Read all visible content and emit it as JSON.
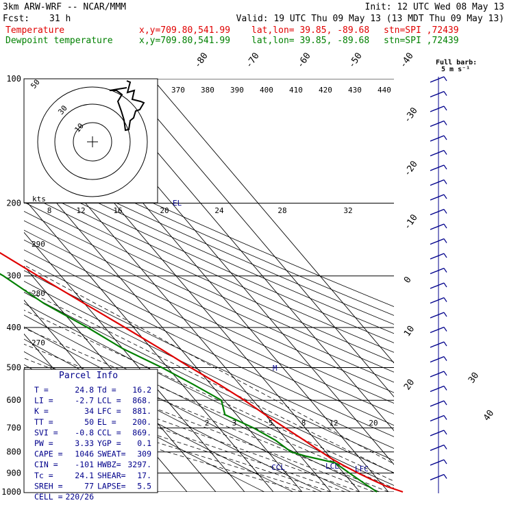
{
  "header": {
    "line1_left": "3km ARW-WRF -- NCAR/MMM",
    "line1_right": "Init: 12 UTC Wed 08 May 13",
    "fcst_label": "Fcst:",
    "fcst_value": "31 h",
    "valid": "Valid: 19 UTC Thu 09 May 13 (13 MDT Thu 09 May 13)",
    "temp_label": "Temperature",
    "dew_label": "Dewpoint temperature",
    "xy": "x,y=709.80,541.99",
    "latlon": "lat,lon= 39.85, -89.68",
    "stn": "stn=SPI ,72439"
  },
  "colors": {
    "temperature": "#e00000",
    "dewpoint": "#008000",
    "parcel_info": "#00008b"
  },
  "barb_legend": {
    "line1": "Full barb:",
    "line2": "5 m s⁻¹"
  },
  "hodograph": {
    "unit_label": "kts",
    "ring_labels": [
      "50",
      "30",
      "10"
    ]
  },
  "chart_data": {
    "type": "skew-T",
    "ylabel": "Pressure (hPa)",
    "pressure_levels": [
      100,
      200,
      300,
      400,
      500,
      600,
      700,
      800,
      900,
      1000
    ],
    "temp_axis_labels_top": [
      -80,
      -70,
      -60,
      -50,
      -40
    ],
    "temp_axis_labels_side": [
      -30,
      -20,
      -10,
      0,
      10,
      20,
      30,
      40
    ],
    "theta_labels_top": [
      370,
      380,
      390,
      400,
      410,
      420,
      430,
      440
    ],
    "theta_labels_left": [
      290,
      280,
      270
    ],
    "mixing_ratio_labels_mid": [
      8,
      12,
      16,
      20,
      24,
      28,
      32
    ],
    "mixing_ratio_labels_low": [
      2,
      3,
      5,
      8,
      12,
      20
    ],
    "markers": {
      "el": "EL",
      "m": "M",
      "ccl": "CCL",
      "lcl": "LCL",
      "lfc": "LFC"
    },
    "series": [
      {
        "name": "Temperature",
        "color": "#e00000",
        "points": [
          [
            1000,
            25
          ],
          [
            970,
            21
          ],
          [
            930,
            17.5
          ],
          [
            900,
            15
          ],
          [
            860,
            12
          ],
          [
            830,
            10
          ],
          [
            800,
            8.5
          ],
          [
            750,
            6
          ],
          [
            700,
            3
          ],
          [
            650,
            0
          ],
          [
            600,
            -3
          ],
          [
            550,
            -7
          ],
          [
            500,
            -12
          ],
          [
            450,
            -17
          ],
          [
            400,
            -23
          ],
          [
            350,
            -30
          ],
          [
            300,
            -38
          ],
          [
            250,
            -47
          ],
          [
            200,
            -55
          ],
          [
            190,
            -57
          ],
          [
            175,
            -56
          ],
          [
            160,
            -51
          ],
          [
            150,
            -47
          ],
          [
            140,
            -42
          ],
          [
            125,
            -36
          ],
          [
            110,
            -31
          ],
          [
            100,
            -28
          ]
        ]
      },
      {
        "name": "Dewpoint temperature",
        "color": "#008000",
        "points": [
          [
            1000,
            16
          ],
          [
            950,
            14
          ],
          [
            900,
            12
          ],
          [
            850,
            10
          ],
          [
            820,
            2
          ],
          [
            800,
            -2
          ],
          [
            750,
            -4
          ],
          [
            700,
            -8
          ],
          [
            650,
            -14
          ],
          [
            600,
            -11
          ],
          [
            550,
            -16
          ],
          [
            500,
            -22
          ],
          [
            450,
            -30
          ],
          [
            400,
            -36
          ],
          [
            350,
            -44
          ],
          [
            300,
            -50
          ],
          [
            250,
            -60
          ],
          [
            200,
            -70
          ],
          [
            170,
            -72
          ],
          [
            150,
            -69
          ],
          [
            135,
            -66
          ],
          [
            120,
            -70
          ],
          [
            110,
            -75
          ],
          [
            100,
            -78
          ]
        ]
      }
    ]
  },
  "parcel": {
    "title": "Parcel Info",
    "rows": [
      {
        "k1": "T  =",
        "v1": "24.8",
        "k2": "Td =",
        "v2": "16.2"
      },
      {
        "k1": "LI =",
        "v1": "-2.7",
        "k2": "LCL =",
        "v2": "868."
      },
      {
        "k1": "K  =",
        "v1": "34",
        "k2": "LFC =",
        "v2": "881."
      },
      {
        "k1": "TT =",
        "v1": "50",
        "k2": "EL =",
        "v2": "200."
      },
      {
        "k1": "SVI =",
        "v1": "-0.8",
        "k2": "CCL =",
        "v2": "869."
      },
      {
        "k1": "PW =",
        "v1": "3.33",
        "k2": "YGP =",
        "v2": "0.1"
      },
      {
        "k1": "CAPE =",
        "v1": "1046",
        "k2": "SWEAT=",
        "v2": "309"
      },
      {
        "k1": "CIN =",
        "v1": "-101",
        "k2": "HWBZ=",
        "v2": "3297."
      },
      {
        "k1": "Tc =",
        "v1": "24.1",
        "k2": "SHEAR=",
        "v2": "17."
      },
      {
        "k1": "SREH =",
        "v1": "77",
        "k2": "LAPSE=",
        "v2": "5.5"
      },
      {
        "k1": "CELL =",
        "v1": "220/26",
        "k2": "",
        "v2": ""
      }
    ]
  }
}
